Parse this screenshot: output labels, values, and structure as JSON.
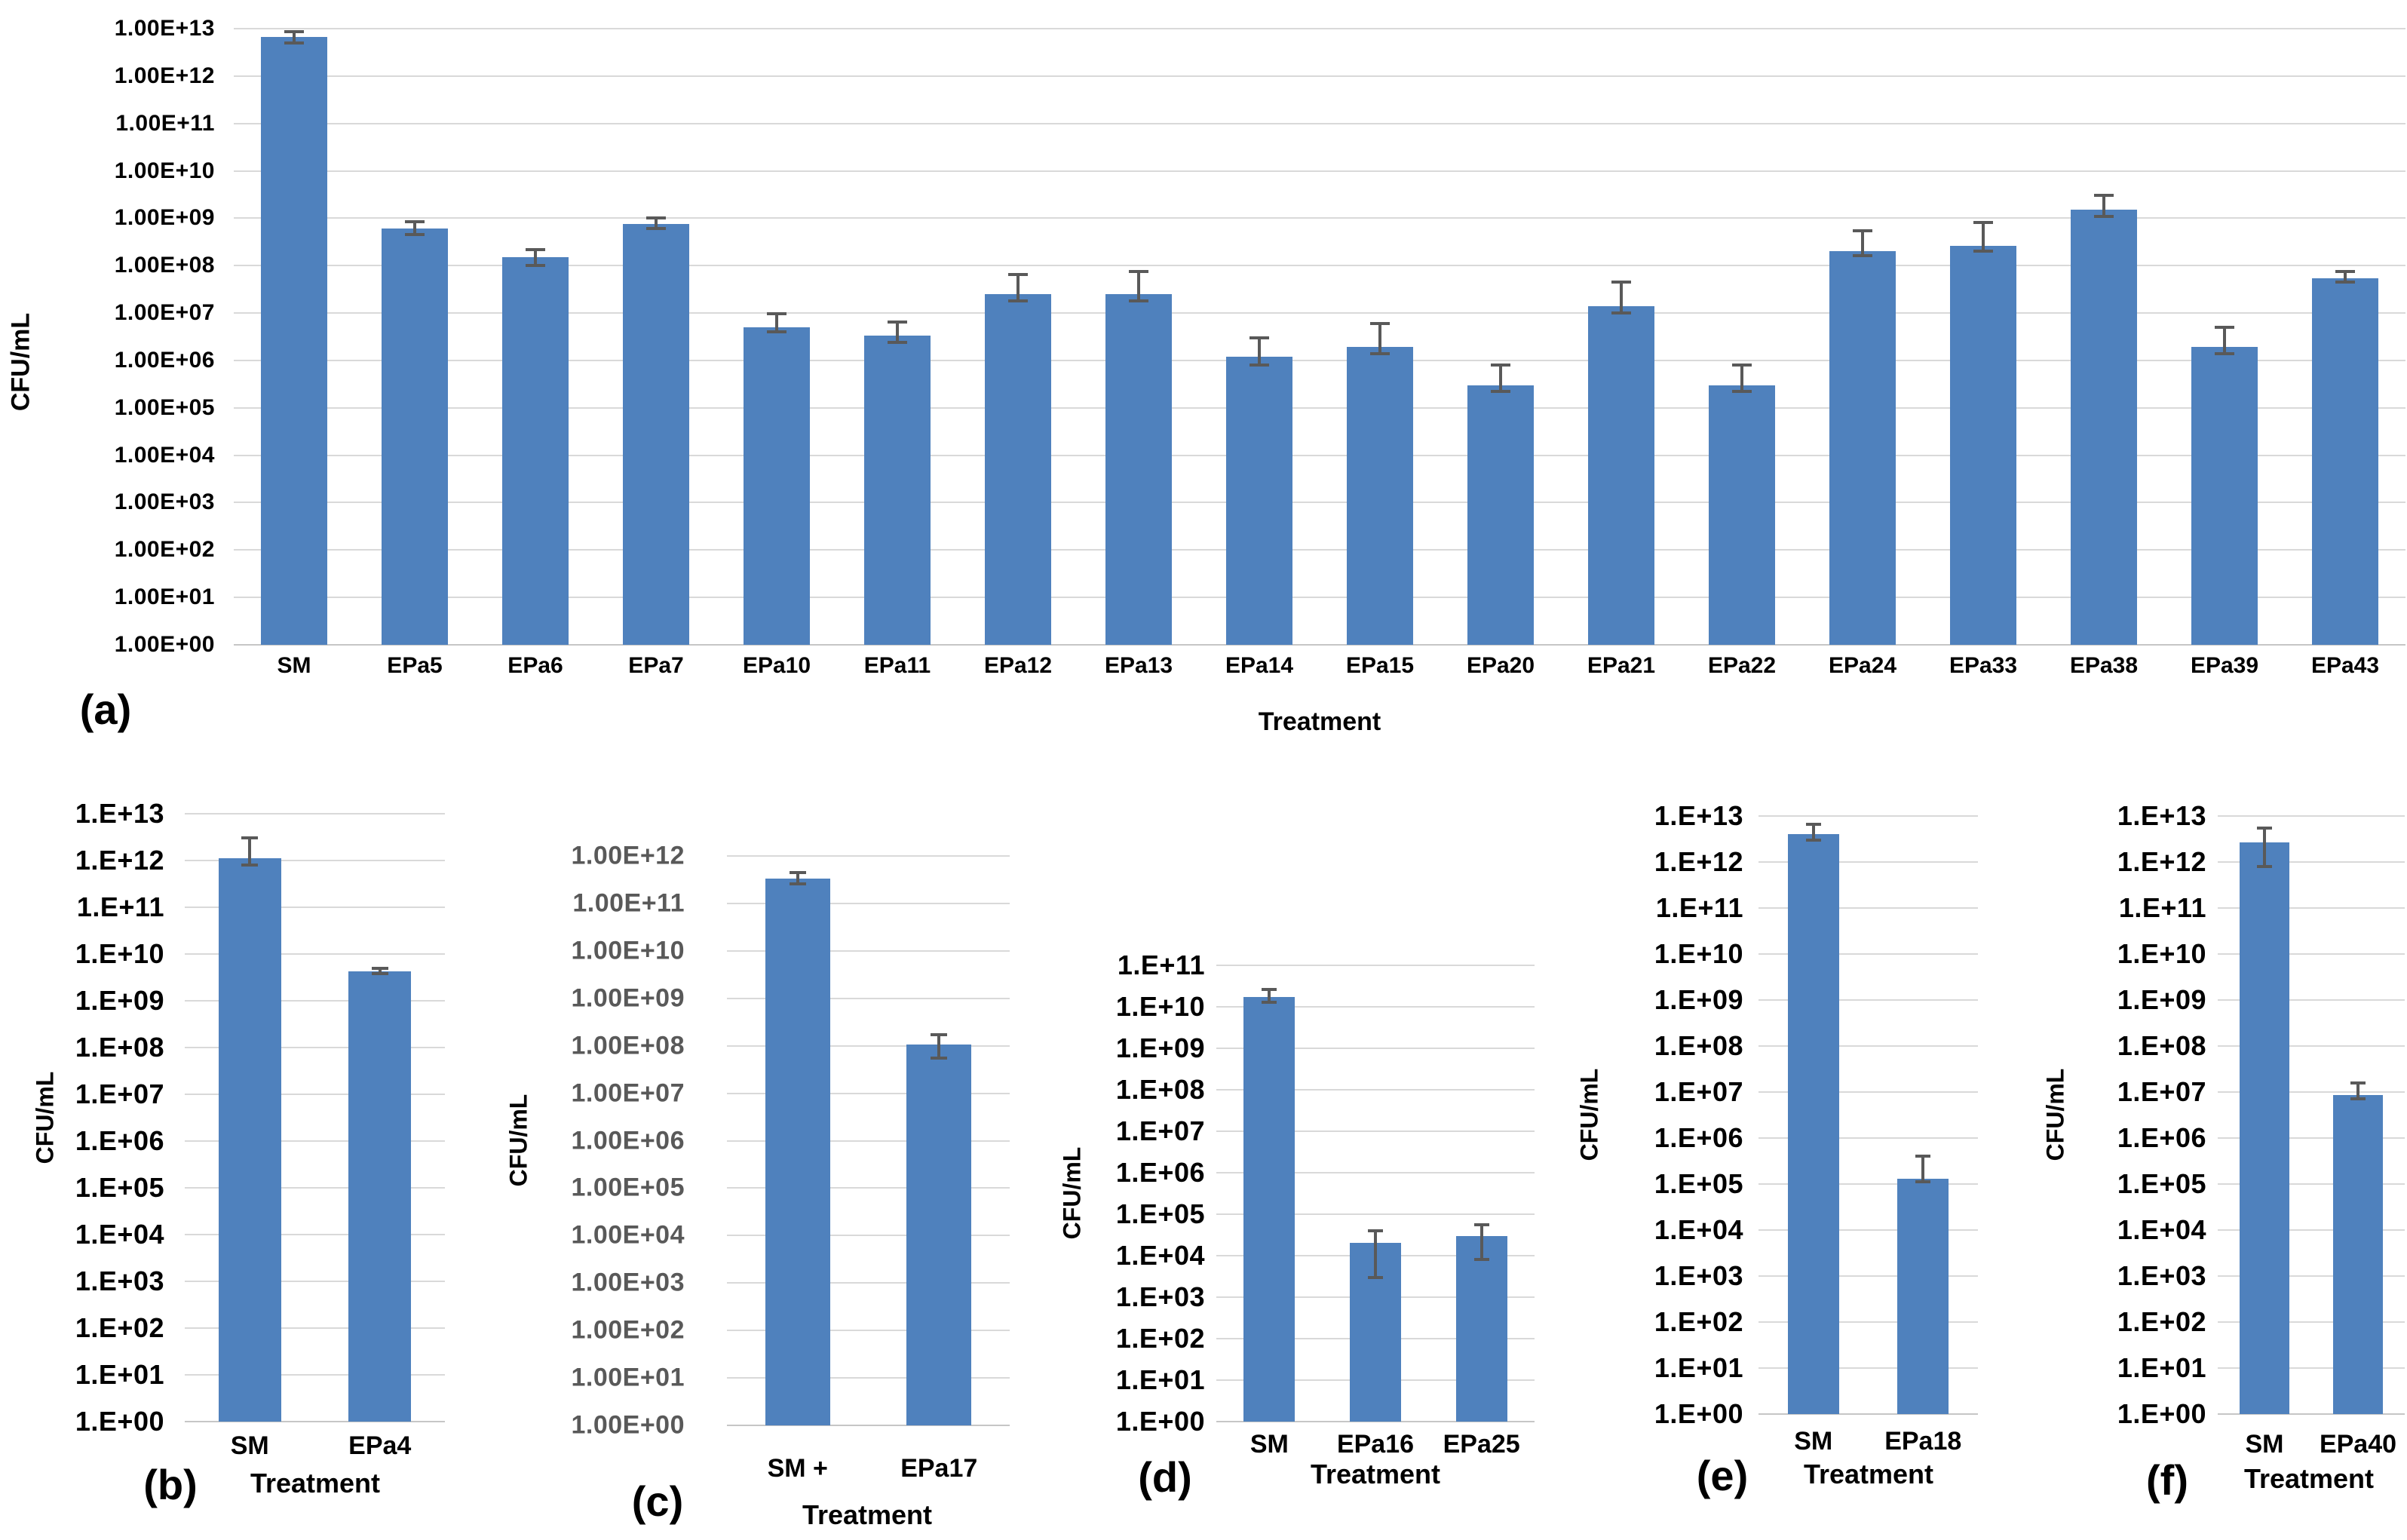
{
  "figure_title": "",
  "styles": {
    "bar_color": "#4f81bd",
    "error_bar_color": "#595959",
    "grid_color": "#d9d9d9",
    "background": "#ffffff",
    "default_tick_color": "#000000",
    "panel_c_tick_color": "#595959"
  },
  "chart_data": [
    {
      "id": "a",
      "type": "bar",
      "panel_label": "(a)",
      "xlabel": "Treatment",
      "ylabel": "CFU/mL",
      "grid": true,
      "legend": "none",
      "y_scale": "log10",
      "ylim": [
        1,
        10000000000000.0
      ],
      "tick_label_color": "#000000",
      "y_ticks": [
        "1.00E+13",
        "1.00E+12",
        "1.00E+11",
        "1.00E+10",
        "1.00E+09",
        "1.00E+08",
        "1.00E+07",
        "1.00E+06",
        "1.00E+05",
        "1.00E+04",
        "1.00E+03",
        "1.00E+02",
        "1.00E+01",
        "1.00E+00"
      ],
      "categories": [
        "SM",
        "EPa5",
        "EPa6",
        "EPa7",
        "EPa10",
        "EPa11",
        "EPa12",
        "EPa13",
        "EPa14",
        "EPa15",
        "EPa20",
        "EPa21",
        "EPa22",
        "EPa24",
        "EPa33",
        "EPa38",
        "EPa39",
        "EPa43"
      ],
      "values": [
        6800000000000.0,
        600000000.0,
        150000000.0,
        750000000.0,
        5000000.0,
        3300000.0,
        25000000.0,
        25000000.0,
        1200000.0,
        1900000.0,
        300000.0,
        14000000.0,
        300000.0,
        200000000.0,
        260000000.0,
        1500000000.0,
        1900000.0,
        55000000.0
      ],
      "err_low": [
        5000000000000.0,
        450000000.0,
        100000000.0,
        600000000.0,
        4000000.0,
        2400000.0,
        18000000.0,
        18000000.0,
        800000.0,
        1400000.0,
        220000.0,
        10000000.0,
        220000.0,
        160000000.0,
        200000000.0,
        1100000000.0,
        1400000.0,
        45000000.0
      ],
      "err_high": [
        8500000000000.0,
        850000000.0,
        220000000.0,
        1000000000.0,
        9500000.0,
        6500000.0,
        65000000.0,
        75000000.0,
        3000000.0,
        6000000.0,
        800000.0,
        45000000.0,
        800000.0,
        550000000.0,
        800000000.0,
        3000000000.0,
        5000000.0,
        75000000.0
      ]
    },
    {
      "id": "b",
      "type": "bar",
      "panel_label": "(b)",
      "xlabel": "Treatment",
      "ylabel": "CFU/mL",
      "grid": true,
      "legend": "none",
      "y_scale": "log10",
      "ylim": [
        1,
        10000000000000.0
      ],
      "tick_label_color": "#000000",
      "y_ticks": [
        "1.E+13",
        "1.E+12",
        "1.E+11",
        "1.E+10",
        "1.E+09",
        "1.E+08",
        "1.E+07",
        "1.E+06",
        "1.E+05",
        "1.E+04",
        "1.E+03",
        "1.E+02",
        "1.E+01",
        "1.E+00"
      ],
      "categories": [
        "SM",
        "EPa4"
      ],
      "values": [
        1100000000000.0,
        4300000000.0
      ],
      "err_low": [
        800000000000.0,
        3800000000.0
      ],
      "err_high": [
        3000000000000.0,
        5000000000.0
      ]
    },
    {
      "id": "c",
      "type": "bar",
      "panel_label": "(c)",
      "xlabel": "Treatment",
      "ylabel": "CFU/mL",
      "grid": true,
      "legend": "none",
      "y_scale": "log10",
      "ylim": [
        1,
        1000000000000.0
      ],
      "tick_label_color": "#595959",
      "y_ticks": [
        "1.00E+12",
        "1.00E+11",
        "1.00E+10",
        "1.00E+09",
        "1.00E+08",
        "1.00E+07",
        "1.00E+06",
        "1.00E+05",
        "1.00E+04",
        "1.00E+03",
        "1.00E+02",
        "1.00E+01",
        "1.00E+00"
      ],
      "categories": [
        "SM +",
        "EPa17"
      ],
      "values": [
        330000000000.0,
        105000000.0
      ],
      "err_low": [
        260000000000.0,
        55000000.0
      ],
      "err_high": [
        450000000000.0,
        170000000.0
      ]
    },
    {
      "id": "d",
      "type": "bar",
      "panel_label": "(d)",
      "xlabel": "Treatment",
      "ylabel": "CFU/mL",
      "grid": true,
      "legend": "none",
      "y_scale": "log10",
      "ylim": [
        1,
        100000000000.0
      ],
      "tick_label_color": "#000000",
      "y_ticks": [
        "1.E+11",
        "1.E+10",
        "1.E+09",
        "1.E+08",
        "1.E+07",
        "1.E+06",
        "1.E+05",
        "1.E+04",
        "1.E+03",
        "1.E+02",
        "1.E+01",
        "1.E+00"
      ],
      "categories": [
        "SM",
        "EPa16",
        "EPa25"
      ],
      "values": [
        17000000000.0,
        20000.0,
        30000.0
      ],
      "err_low": [
        13000000000.0,
        3000.0,
        8000.0
      ],
      "err_high": [
        26000000000.0,
        40000.0,
        55000.0
      ]
    },
    {
      "id": "e",
      "type": "bar",
      "panel_label": "(e)",
      "xlabel": "Treatment",
      "ylabel": "CFU/mL",
      "grid": true,
      "legend": "none",
      "y_scale": "log10",
      "ylim": [
        1,
        10000000000000.0
      ],
      "tick_label_color": "#000000",
      "y_ticks": [
        "1.E+13",
        "1.E+12",
        "1.E+11",
        "1.E+10",
        "1.E+09",
        "1.E+08",
        "1.E+07",
        "1.E+06",
        "1.E+05",
        "1.E+04",
        "1.E+03",
        "1.E+02",
        "1.E+01",
        "1.E+00"
      ],
      "categories": [
        "SM",
        "EPa18"
      ],
      "values": [
        4000000000000.0,
        130000.0
      ],
      "err_low": [
        3000000000000.0,
        110000.0
      ],
      "err_high": [
        6500000000000.0,
        400000.0
      ]
    },
    {
      "id": "f",
      "type": "bar",
      "panel_label": "(f)",
      "xlabel": "Treatment",
      "ylabel": "CFU/mL",
      "grid": true,
      "legend": "none",
      "y_scale": "log10",
      "ylim": [
        1,
        10000000000000.0
      ],
      "tick_label_color": "#000000",
      "y_ticks": [
        "1.E+13",
        "1.E+12",
        "1.E+11",
        "1.E+10",
        "1.E+09",
        "1.E+08",
        "1.E+07",
        "1.E+06",
        "1.E+05",
        "1.E+04",
        "1.E+03",
        "1.E+02",
        "1.E+01",
        "1.E+00"
      ],
      "categories": [
        "SM",
        "EPa40"
      ],
      "values": [
        2700000000000.0,
        8500000.0
      ],
      "err_low": [
        800000000000.0,
        7000000.0
      ],
      "err_high": [
        5500000000000.0,
        16000000.0
      ]
    }
  ]
}
